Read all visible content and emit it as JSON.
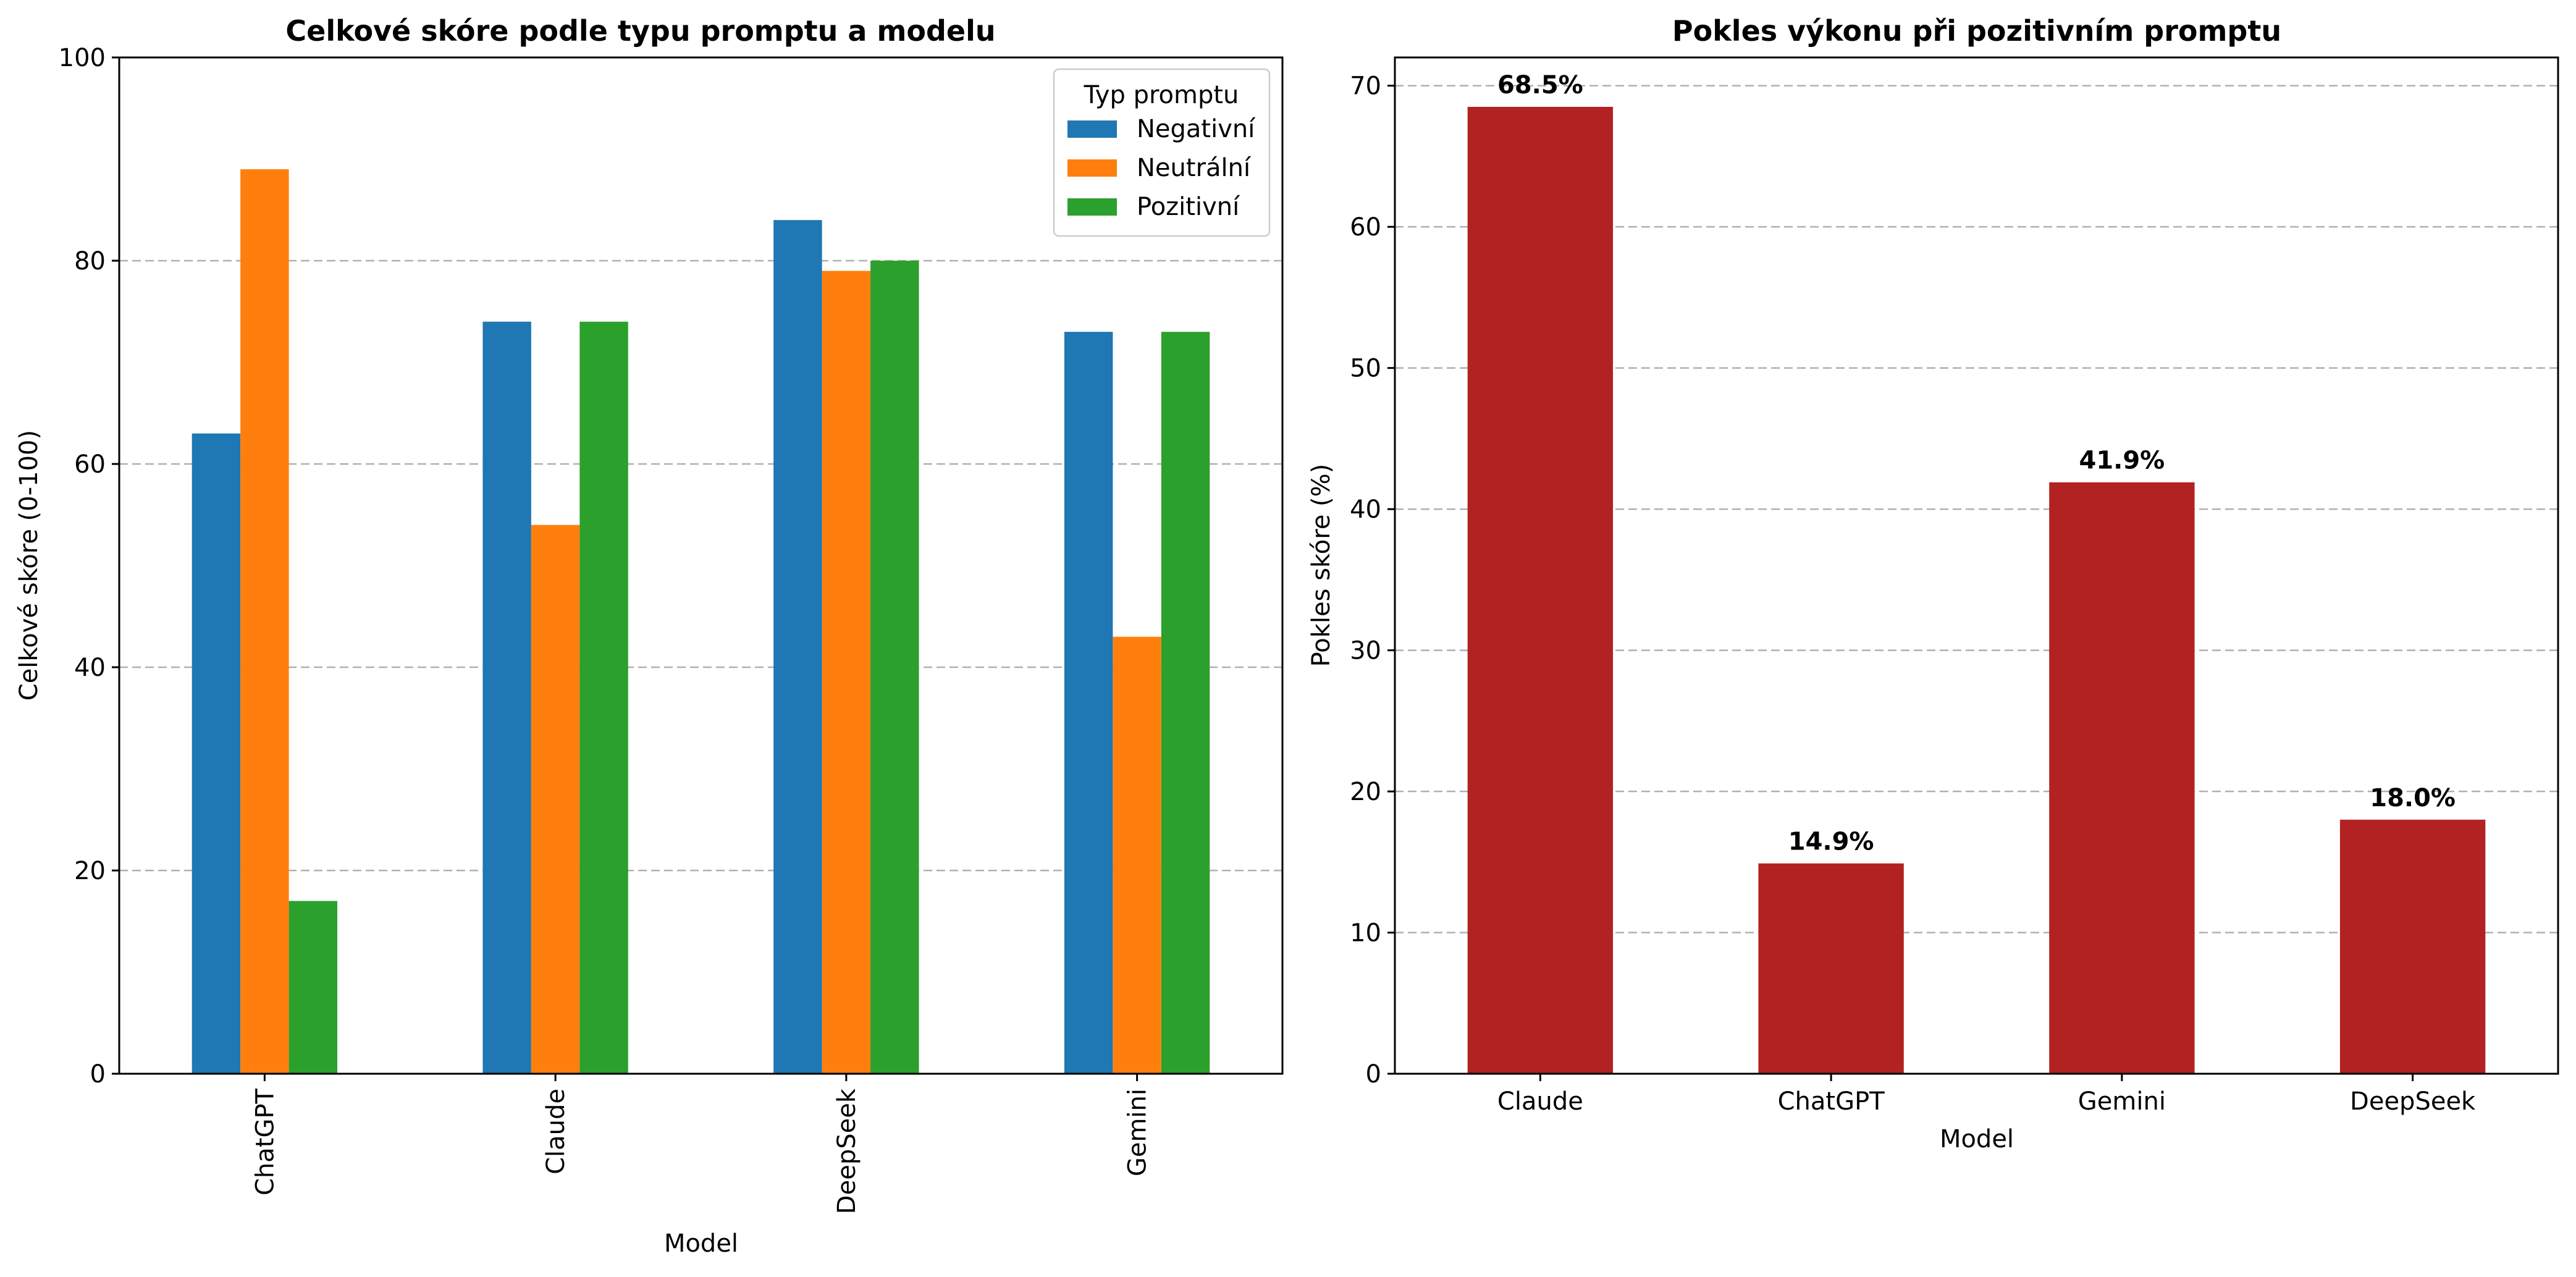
{
  "chart_data": [
    {
      "type": "bar",
      "title": "Celkové skóre podle typu promptu a modelu",
      "xlabel": "Model",
      "ylabel": "Celkové skóre (0-100)",
      "ylim": [
        0,
        100
      ],
      "yticks": [
        0,
        20,
        40,
        60,
        80,
        100
      ],
      "grid": "y dashed",
      "legend_title": "Typ promptu",
      "legend_position": "top-right",
      "categories": [
        "ChatGPT",
        "Claude",
        "DeepSeek",
        "Gemini"
      ],
      "series": [
        {
          "name": "Negativní",
          "color": "#1f77b4",
          "values": [
            63,
            74,
            84,
            73
          ]
        },
        {
          "name": "Neutrální",
          "color": "#ff7f0e",
          "values": [
            89,
            54,
            79,
            43
          ]
        },
        {
          "name": "Pozitivní",
          "color": "#2ca02c",
          "values": [
            17,
            74,
            80,
            73
          ]
        }
      ]
    },
    {
      "type": "bar",
      "title": "Pokles výkonu při pozitivním promptu",
      "xlabel": "Model",
      "ylabel": "Pokles skóre (%)",
      "ylim": [
        0,
        72
      ],
      "yticks": [
        0,
        10,
        20,
        30,
        40,
        50,
        60,
        70
      ],
      "grid": "y dashed",
      "color": "#b22222",
      "categories": [
        "Claude",
        "ChatGPT",
        "Gemini",
        "DeepSeek"
      ],
      "values": [
        68.5,
        14.9,
        41.9,
        18.0
      ],
      "data_labels": [
        "68.5%",
        "14.9%",
        "41.9%",
        "18.0%"
      ]
    }
  ]
}
